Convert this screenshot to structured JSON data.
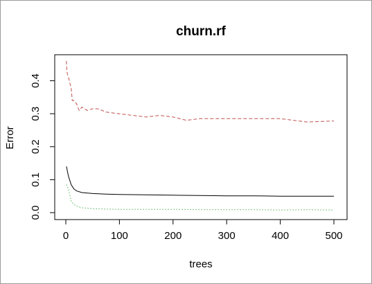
{
  "chart_data": {
    "type": "line",
    "title": "churn.rf",
    "xlabel": "trees",
    "ylabel": "Error",
    "xlim": [
      0,
      500
    ],
    "ylim": [
      0.0,
      0.46
    ],
    "xticks": [
      0,
      100,
      200,
      300,
      400,
      500
    ],
    "yticks": [
      0.0,
      0.1,
      0.2,
      0.3,
      0.4
    ],
    "xtick_labels": [
      "0",
      "100",
      "200",
      "300",
      "400",
      "500"
    ],
    "ytick_labels": [
      "0.0",
      "0.1",
      "0.2",
      "0.3",
      "0.4"
    ],
    "grid": false,
    "legend": "none",
    "series": [
      {
        "color": "#000000",
        "dash": "solid",
        "x": [
          1,
          2,
          3,
          5,
          8,
          10,
          15,
          20,
          30,
          50,
          75,
          100,
          150,
          200,
          250,
          300,
          350,
          400,
          450,
          500
        ],
        "y": [
          0.14,
          0.135,
          0.125,
          0.11,
          0.095,
          0.085,
          0.072,
          0.066,
          0.061,
          0.058,
          0.056,
          0.055,
          0.054,
          0.053,
          0.052,
          0.051,
          0.051,
          0.05,
          0.05,
          0.05
        ]
      },
      {
        "color": "#c0504d",
        "dash": "dashed",
        "x": [
          1,
          2,
          3,
          5,
          8,
          10,
          12,
          15,
          20,
          25,
          30,
          40,
          50,
          60,
          75,
          100,
          125,
          150,
          175,
          200,
          225,
          250,
          275,
          300,
          350,
          400,
          425,
          450,
          500
        ],
        "y": [
          0.46,
          0.43,
          0.42,
          0.41,
          0.39,
          0.38,
          0.34,
          0.34,
          0.33,
          0.31,
          0.32,
          0.31,
          0.315,
          0.315,
          0.305,
          0.3,
          0.295,
          0.29,
          0.295,
          0.29,
          0.28,
          0.285,
          0.285,
          0.285,
          0.285,
          0.285,
          0.28,
          0.275,
          0.278
        ]
      },
      {
        "color": "#4caf50",
        "dash": "dotted",
        "x": [
          1,
          3,
          5,
          8,
          10,
          15,
          20,
          30,
          50,
          75,
          100,
          150,
          200,
          250,
          300,
          350,
          400,
          450,
          500
        ],
        "y": [
          0.085,
          0.08,
          0.07,
          0.05,
          0.035,
          0.025,
          0.02,
          0.015,
          0.012,
          0.011,
          0.01,
          0.01,
          0.01,
          0.009,
          0.009,
          0.009,
          0.008,
          0.009,
          0.008
        ]
      }
    ]
  }
}
